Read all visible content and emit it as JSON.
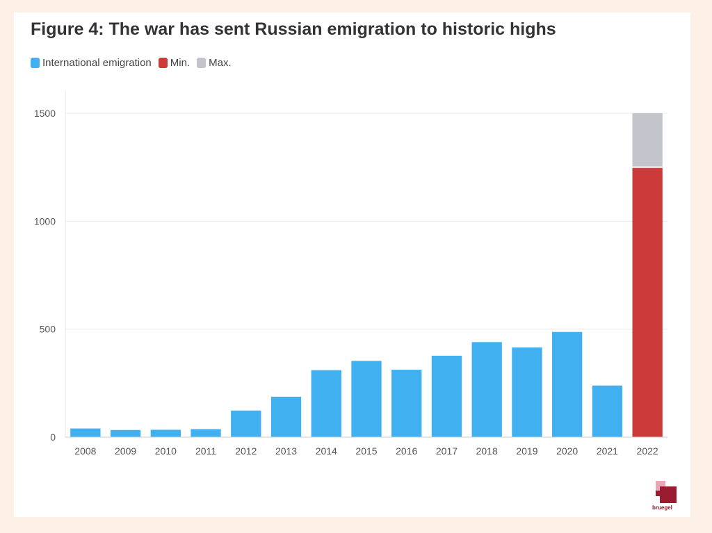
{
  "colors": {
    "emigration": "#40b0f0",
    "min": "#cc3a3a",
    "max": "#c4c4cc",
    "grid": "#e8e8e8",
    "axis_text": "#555555"
  },
  "legend": {
    "items": [
      {
        "label": "International emigration",
        "color": "#40b0f0"
      },
      {
        "label": "Min.",
        "color": "#cc3a3a"
      },
      {
        "label": "Max.",
        "color": "#c4c4cc"
      }
    ]
  },
  "brand": {
    "logo_text": "bruegel"
  },
  "chart_data": {
    "type": "bar",
    "title": "Figure 4: The war has sent Russian emigration to historic highs",
    "xlabel": "",
    "ylabel": "",
    "ylim": [
      0,
      1500
    ],
    "yticks": [
      0,
      500,
      1000,
      1500
    ],
    "grid": true,
    "legend_position": "top-left",
    "categories": [
      "2008",
      "2009",
      "2010",
      "2011",
      "2012",
      "2013",
      "2014",
      "2015",
      "2016",
      "2017",
      "2018",
      "2019",
      "2020",
      "2021",
      "2022"
    ],
    "series": [
      {
        "name": "International emigration",
        "values": [
          40,
          33,
          34,
          37,
          123,
          187,
          310,
          353,
          312,
          377,
          440,
          415,
          487,
          239,
          null
        ]
      },
      {
        "name": "Min.",
        "values": [
          null,
          null,
          null,
          null,
          null,
          null,
          null,
          null,
          null,
          null,
          null,
          null,
          null,
          null,
          1250
        ]
      },
      {
        "name": "Max.",
        "values": [
          null,
          null,
          null,
          null,
          null,
          null,
          null,
          null,
          null,
          null,
          null,
          null,
          null,
          null,
          250
        ]
      }
    ],
    "stacked": true
  }
}
